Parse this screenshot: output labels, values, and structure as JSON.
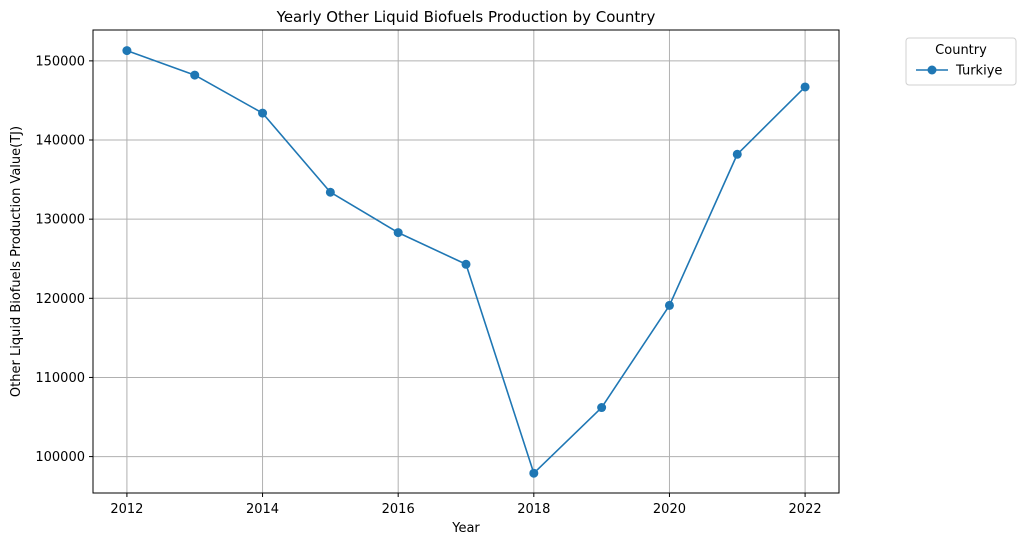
{
  "chart_data": {
    "type": "line",
    "title": "Yearly Other Liquid Biofuels Production by Country",
    "xlabel": "Year",
    "ylabel": "Other Liquid Biofuels Production Value(TJ)",
    "x": [
      2012,
      2013,
      2014,
      2015,
      2016,
      2017,
      2018,
      2019,
      2020,
      2021,
      2022
    ],
    "series": [
      {
        "name": "Turkiye",
        "color": "#1f77b4",
        "marker": "circle",
        "values": [
          151300,
          148200,
          143400,
          133400,
          128300,
          124300,
          97900,
          106200,
          119100,
          138200,
          146700
        ]
      }
    ],
    "xlim": [
      2011.5,
      2022.5
    ],
    "ylim": [
      95400,
      153900
    ],
    "xticks": [
      2012,
      2014,
      2016,
      2018,
      2020,
      2022
    ],
    "xtick_labels": [
      "2012",
      "2014",
      "2016",
      "2018",
      "2020",
      "2022"
    ],
    "yticks": [
      100000,
      110000,
      120000,
      130000,
      140000,
      150000
    ],
    "ytick_labels": [
      "100000",
      "110000",
      "120000",
      "130000",
      "140000",
      "150000"
    ],
    "grid": true,
    "grid_color": "#b0b0b0",
    "legend": {
      "title": "Country",
      "placement": "outside-top-right"
    }
  }
}
